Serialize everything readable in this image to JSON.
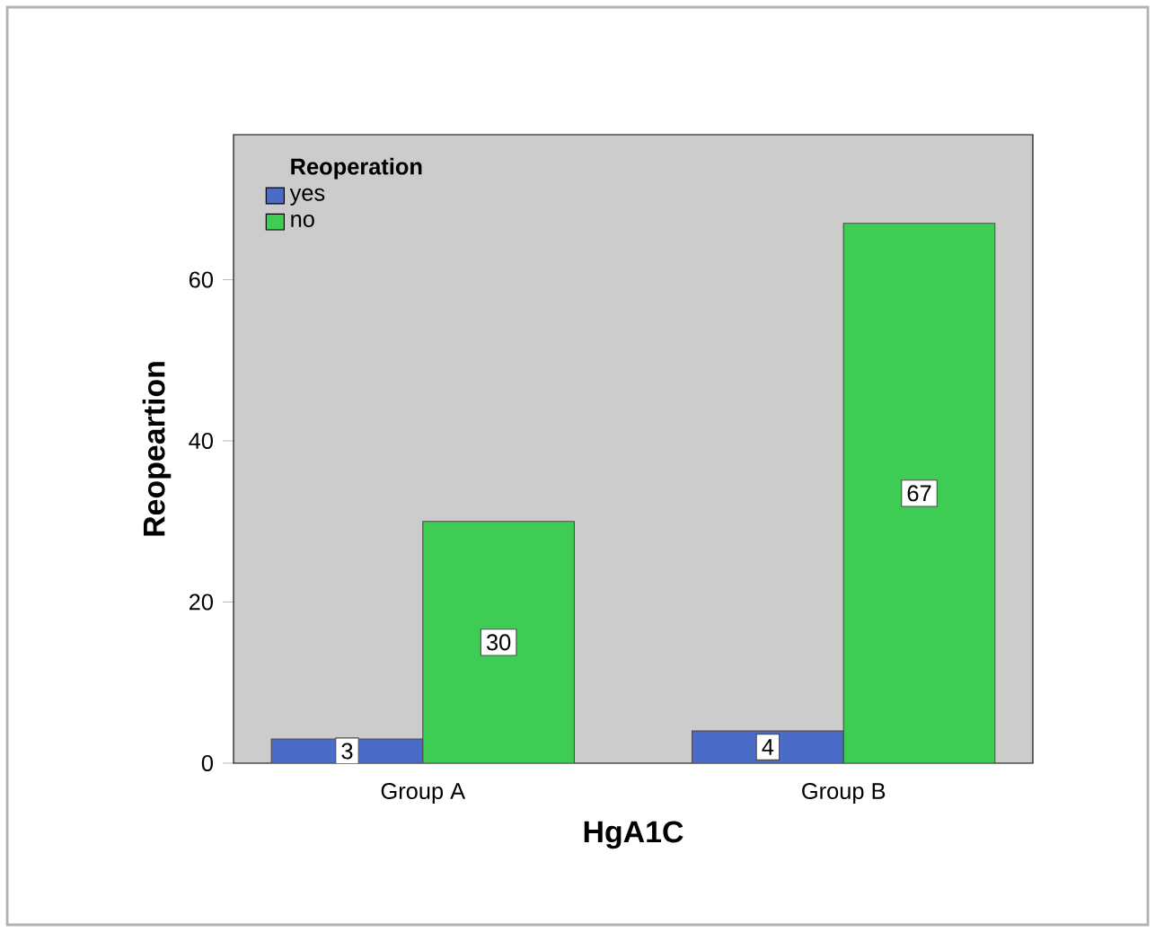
{
  "chart_data": {
    "type": "bar",
    "xlabel": "HgA1C",
    "ylabel": "Reopeartion",
    "legend_title": "Reoperation",
    "categories": [
      "Group A",
      "Group B"
    ],
    "series": [
      {
        "name": "yes",
        "color": "#4a6cc8",
        "values": [
          3,
          4
        ]
      },
      {
        "name": "no",
        "color": "#3fcc55",
        "values": [
          30,
          67
        ]
      }
    ],
    "ylim": [
      0,
      78
    ],
    "yticks": [
      0,
      20,
      40,
      60
    ],
    "legend": "top left",
    "data_labels": true
  }
}
